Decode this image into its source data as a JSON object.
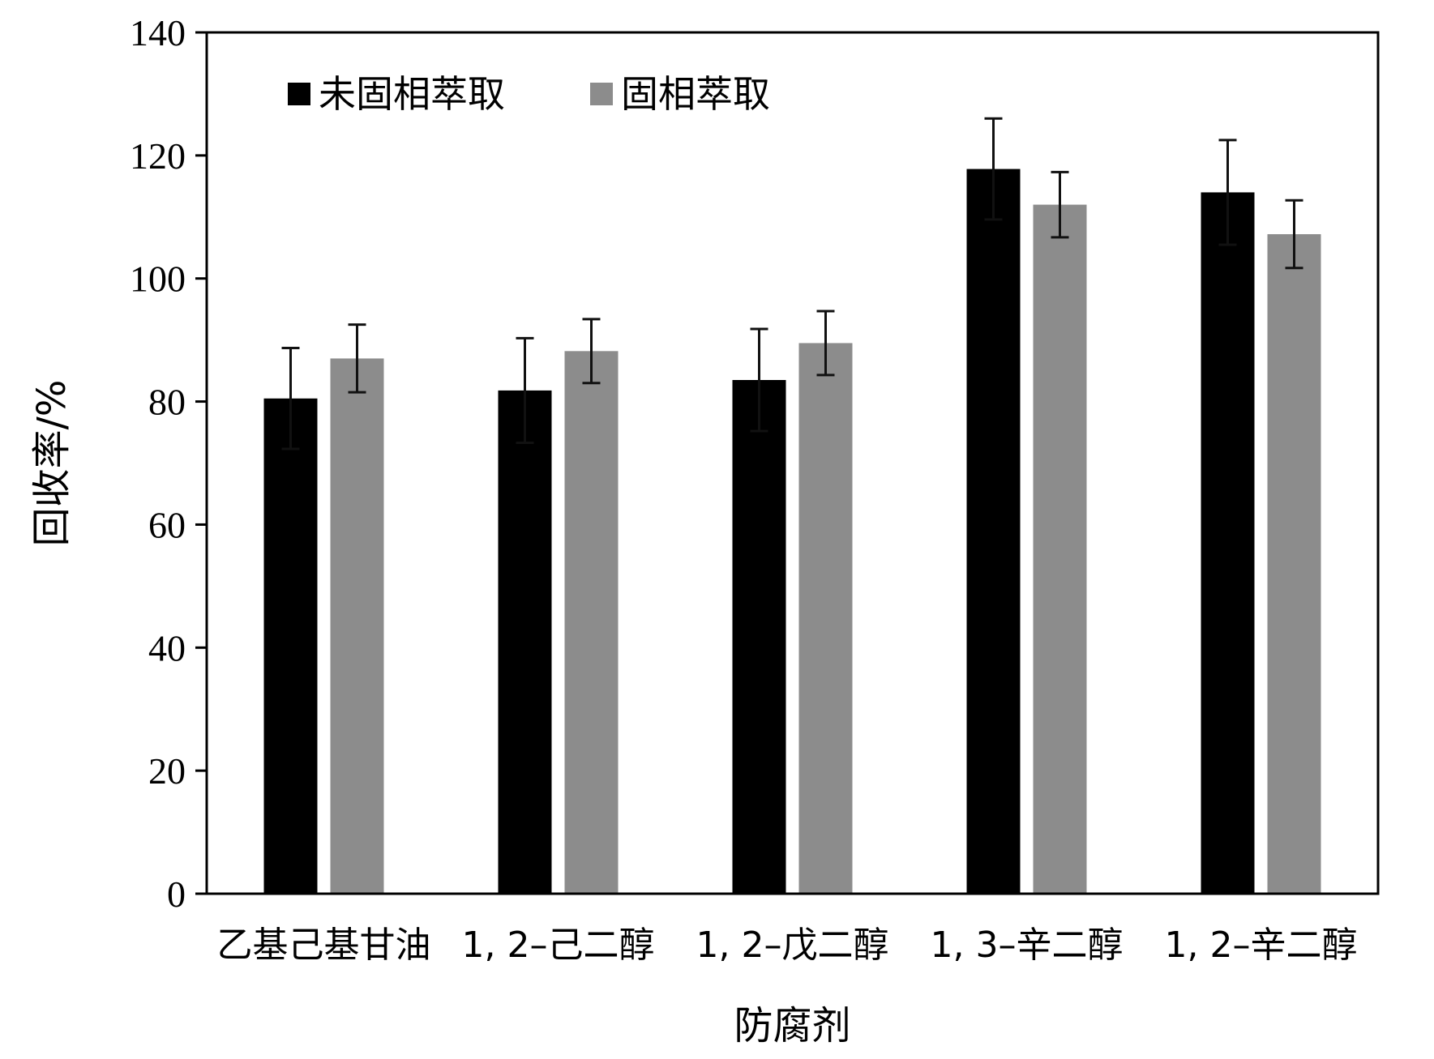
{
  "chart_data": {
    "type": "bar",
    "categories": [
      "乙基己基甘油",
      "1, 2–己二醇",
      "1, 2–戊二醇",
      "1, 3–辛二醇",
      "1, 2–辛二醇"
    ],
    "series": [
      {
        "name": "未固相萃取",
        "color": "#000000",
        "values": [
          80.5,
          81.8,
          83.5,
          117.8,
          114.0
        ],
        "errors": [
          8.2,
          8.5,
          8.3,
          8.2,
          8.5
        ]
      },
      {
        "name": "固相萃取",
        "color": "#8c8c8c",
        "values": [
          87.0,
          88.2,
          89.5,
          112.0,
          107.2
        ],
        "errors": [
          5.5,
          5.2,
          5.2,
          5.3,
          5.5
        ]
      }
    ],
    "xlabel": "防腐剂",
    "ylabel": "回收率/%",
    "ylim": [
      0,
      140
    ],
    "yticks": [
      "0",
      "20",
      "40",
      "60",
      "80",
      "100",
      "120",
      "140"
    ],
    "grid": false,
    "legend_position": "top-left"
  }
}
